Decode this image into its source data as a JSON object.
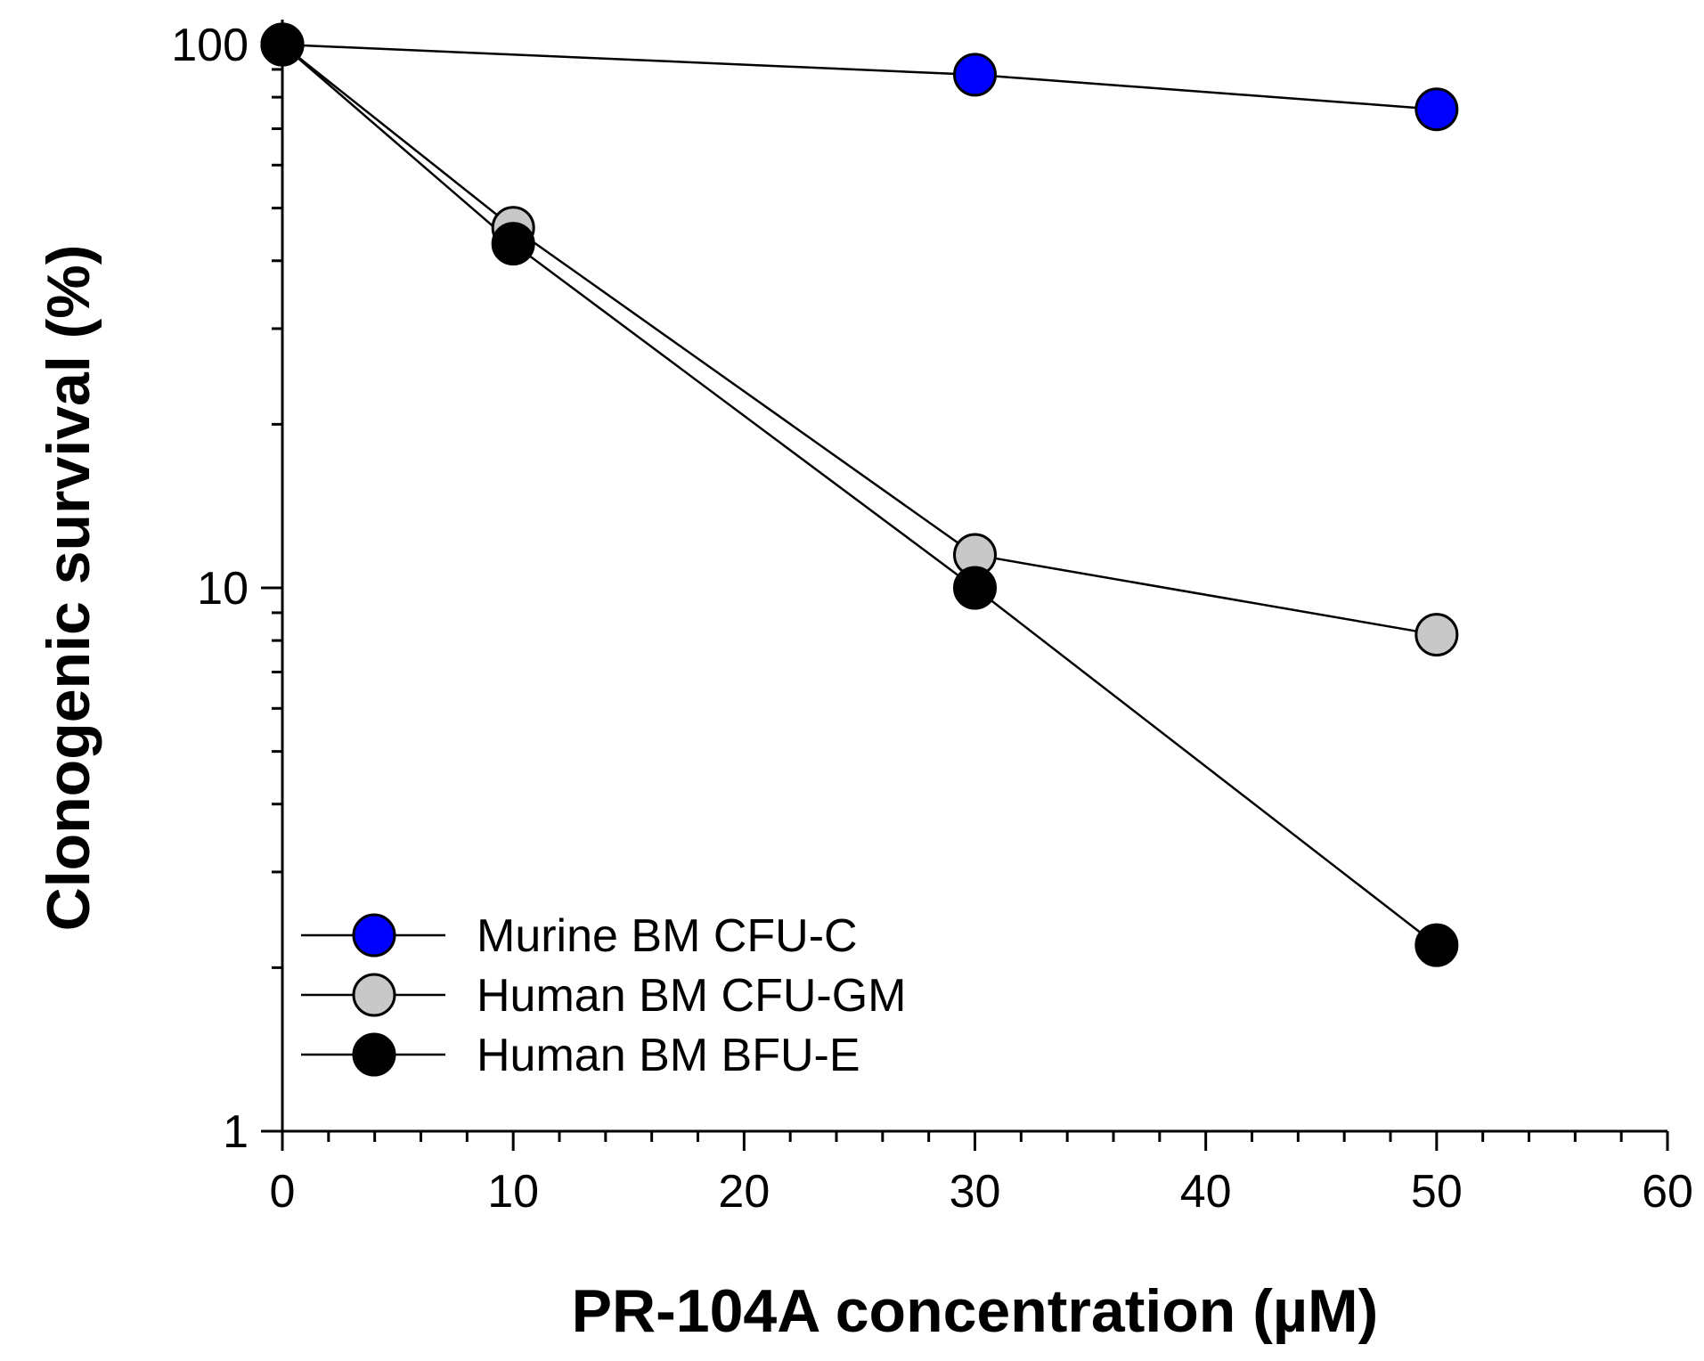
{
  "chart_data": {
    "type": "line",
    "title": "",
    "xlabel": "PR-104A concentration (µM)",
    "ylabel": "Clonogenic survival (%)",
    "xlim": [
      0,
      60
    ],
    "ylim": [
      1,
      100
    ],
    "yscale": "log",
    "xticks": [
      0,
      10,
      20,
      30,
      40,
      50,
      60
    ],
    "yticks": [
      1,
      10,
      100
    ],
    "x_minor_step": 2,
    "legend_position": "bottom-left",
    "grid": false,
    "series": [
      {
        "name": "Murine BM CFU-C",
        "color": "#0000ff",
        "x": [
          0,
          30,
          50
        ],
        "values": [
          100,
          88,
          76
        ]
      },
      {
        "name": "Human BM CFU-GM",
        "color": "#c8c8c8",
        "x": [
          0,
          10,
          30,
          50
        ],
        "values": [
          100,
          46,
          11.5,
          8.2
        ]
      },
      {
        "name": "Human BM BFU-E",
        "color": "#000000",
        "x": [
          0,
          10,
          30,
          50
        ],
        "values": [
          100,
          43,
          10,
          2.2
        ]
      }
    ]
  }
}
